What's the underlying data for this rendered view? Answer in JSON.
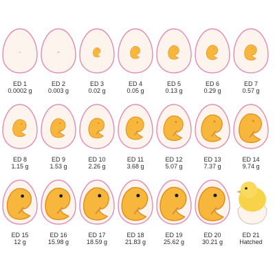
{
  "colors": {
    "shell_outline": "#e48ab2",
    "shell_fill": "#fdf4ee",
    "embryo_fill": "#f6b73c",
    "embryo_edge": "#e08b1c",
    "beak": "#d98a3a",
    "eye": "#1b1b1b",
    "text": "#2a2a2a"
  },
  "stages": [
    {
      "day": "ED 1",
      "weight": "0.0002 g"
    },
    {
      "day": "ED 2",
      "weight": "0.003 g"
    },
    {
      "day": "ED 3",
      "weight": "0.02 g"
    },
    {
      "day": "ED 4",
      "weight": "0.05 g"
    },
    {
      "day": "ED 5",
      "weight": "0.13 g"
    },
    {
      "day": "ED 6",
      "weight": "0.29 g"
    },
    {
      "day": "ED 7",
      "weight": "0.57 g"
    },
    {
      "day": "ED 8",
      "weight": "1.15 g"
    },
    {
      "day": "ED 9",
      "weight": "1.53 g"
    },
    {
      "day": "ED 10",
      "weight": "2.26 g"
    },
    {
      "day": "ED 11",
      "weight": "3.68 g"
    },
    {
      "day": "ED 12",
      "weight": "5.07 g"
    },
    {
      "day": "ED 13",
      "weight": "7.37 g"
    },
    {
      "day": "ED 14",
      "weight": "9.74 g"
    },
    {
      "day": "ED 15",
      "weight": "12 g"
    },
    {
      "day": "ED 16",
      "weight": "15.98 g"
    },
    {
      "day": "ED 17",
      "weight": "18.59 g"
    },
    {
      "day": "ED 18",
      "weight": "21.83 g"
    },
    {
      "day": "ED 19",
      "weight": "25.62 g"
    },
    {
      "day": "ED 20",
      "weight": "30.21 g"
    },
    {
      "day": "ED 21",
      "weight": "Hatched"
    }
  ]
}
